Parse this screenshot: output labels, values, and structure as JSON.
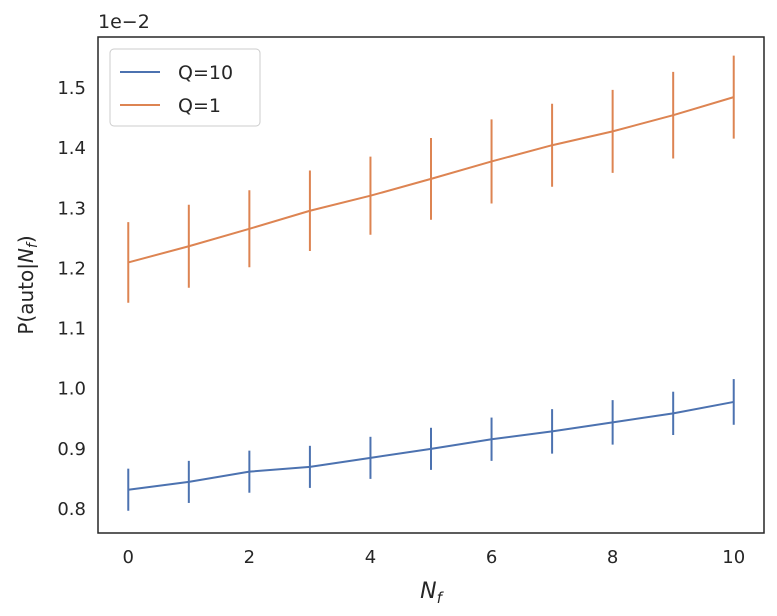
{
  "chart_data": {
    "type": "line",
    "title": "",
    "xlabel": "N_f",
    "ylabel": "P(auto|N_f)",
    "offset_label": "1e−2",
    "xlim": [
      -0.5,
      10.5
    ],
    "ylim": [
      0.76,
      1.585
    ],
    "xticks": [
      0,
      2,
      4,
      6,
      8,
      10
    ],
    "yticks": [
      0.8,
      0.9,
      1.0,
      1.1,
      1.2,
      1.3,
      1.4,
      1.5
    ],
    "ytick_labels": [
      "0.8",
      "0.9",
      "1.0",
      "1.1",
      "1.2",
      "1.3",
      "1.4",
      "1.5"
    ],
    "grid": false,
    "legend_position": "top-left",
    "x": [
      0,
      1,
      2,
      3,
      4,
      5,
      6,
      7,
      8,
      9,
      10
    ],
    "series": [
      {
        "name": "Q=10",
        "color": "#4c72b0",
        "values": [
          0.832,
          0.845,
          0.862,
          0.87,
          0.885,
          0.9,
          0.916,
          0.929,
          0.944,
          0.959,
          0.978
        ],
        "errors": [
          0.035,
          0.035,
          0.035,
          0.035,
          0.035,
          0.035,
          0.036,
          0.037,
          0.037,
          0.036,
          0.038
        ]
      },
      {
        "name": "Q=1",
        "color": "#dd8452",
        "values": [
          1.21,
          1.237,
          1.266,
          1.296,
          1.321,
          1.349,
          1.378,
          1.405,
          1.428,
          1.455,
          1.485
        ],
        "errors": [
          0.067,
          0.069,
          0.064,
          0.067,
          0.065,
          0.068,
          0.07,
          0.069,
          0.069,
          0.072,
          0.069
        ]
      }
    ]
  }
}
